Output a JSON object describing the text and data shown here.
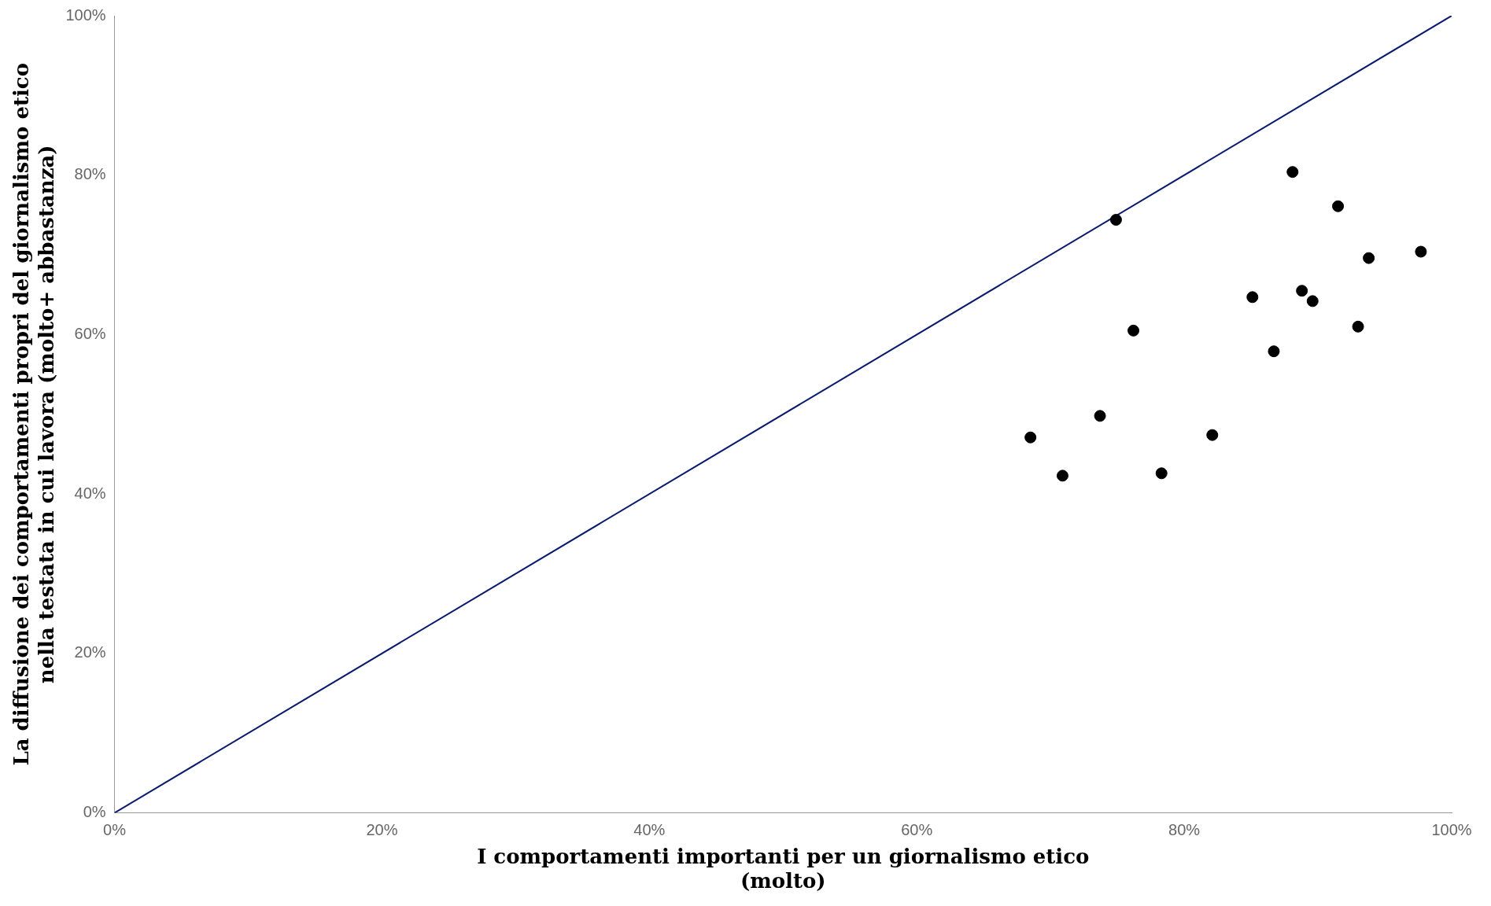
{
  "chart_data": {
    "type": "scatter",
    "xlabel": "I comportamenti importanti per un giornalismo etico\n(molto)",
    "ylabel": "La diffusione dei comportamenti propri del giornalismo etico\nnella testata in cui lavora (molto+ abbastanza)",
    "series": [
      {
        "color": "#000000",
        "marker": "circle",
        "x": [
          68.5,
          70.9,
          73.7,
          74.9,
          76.2,
          78.3,
          82.1,
          85.1,
          86.7,
          88.1,
          88.8,
          89.6,
          91.5,
          93.0,
          93.8,
          97.7
        ],
        "values": [
          47.1,
          42.3,
          49.8,
          74.4,
          60.5,
          42.6,
          47.4,
          64.7,
          57.9,
          80.4,
          65.5,
          64.2,
          76.1,
          61.0,
          69.6,
          70.4
        ]
      },
      {
        "type": "line",
        "color": "#0a1a6e",
        "marker": "none",
        "line_style": "solid",
        "x": [
          0,
          100
        ],
        "values": [
          0,
          100
        ]
      }
    ],
    "xlim": [
      0,
      100
    ],
    "ylim": [
      0,
      100
    ],
    "xticks": [
      {
        "value": 0,
        "label": "0%"
      },
      {
        "value": 20,
        "label": "20%"
      },
      {
        "value": 40,
        "label": "40%"
      },
      {
        "value": 60,
        "label": "60%"
      },
      {
        "value": 80,
        "label": "80%"
      },
      {
        "value": 100,
        "label": "100%"
      }
    ],
    "yticks": [
      {
        "value": 0,
        "label": "0%"
      },
      {
        "value": 20,
        "label": "20%"
      },
      {
        "value": 40,
        "label": "40%"
      },
      {
        "value": 60,
        "label": "60%"
      },
      {
        "value": 80,
        "label": "80%"
      },
      {
        "value": 100,
        "label": "100%"
      }
    ],
    "grid": false,
    "legend": false
  }
}
